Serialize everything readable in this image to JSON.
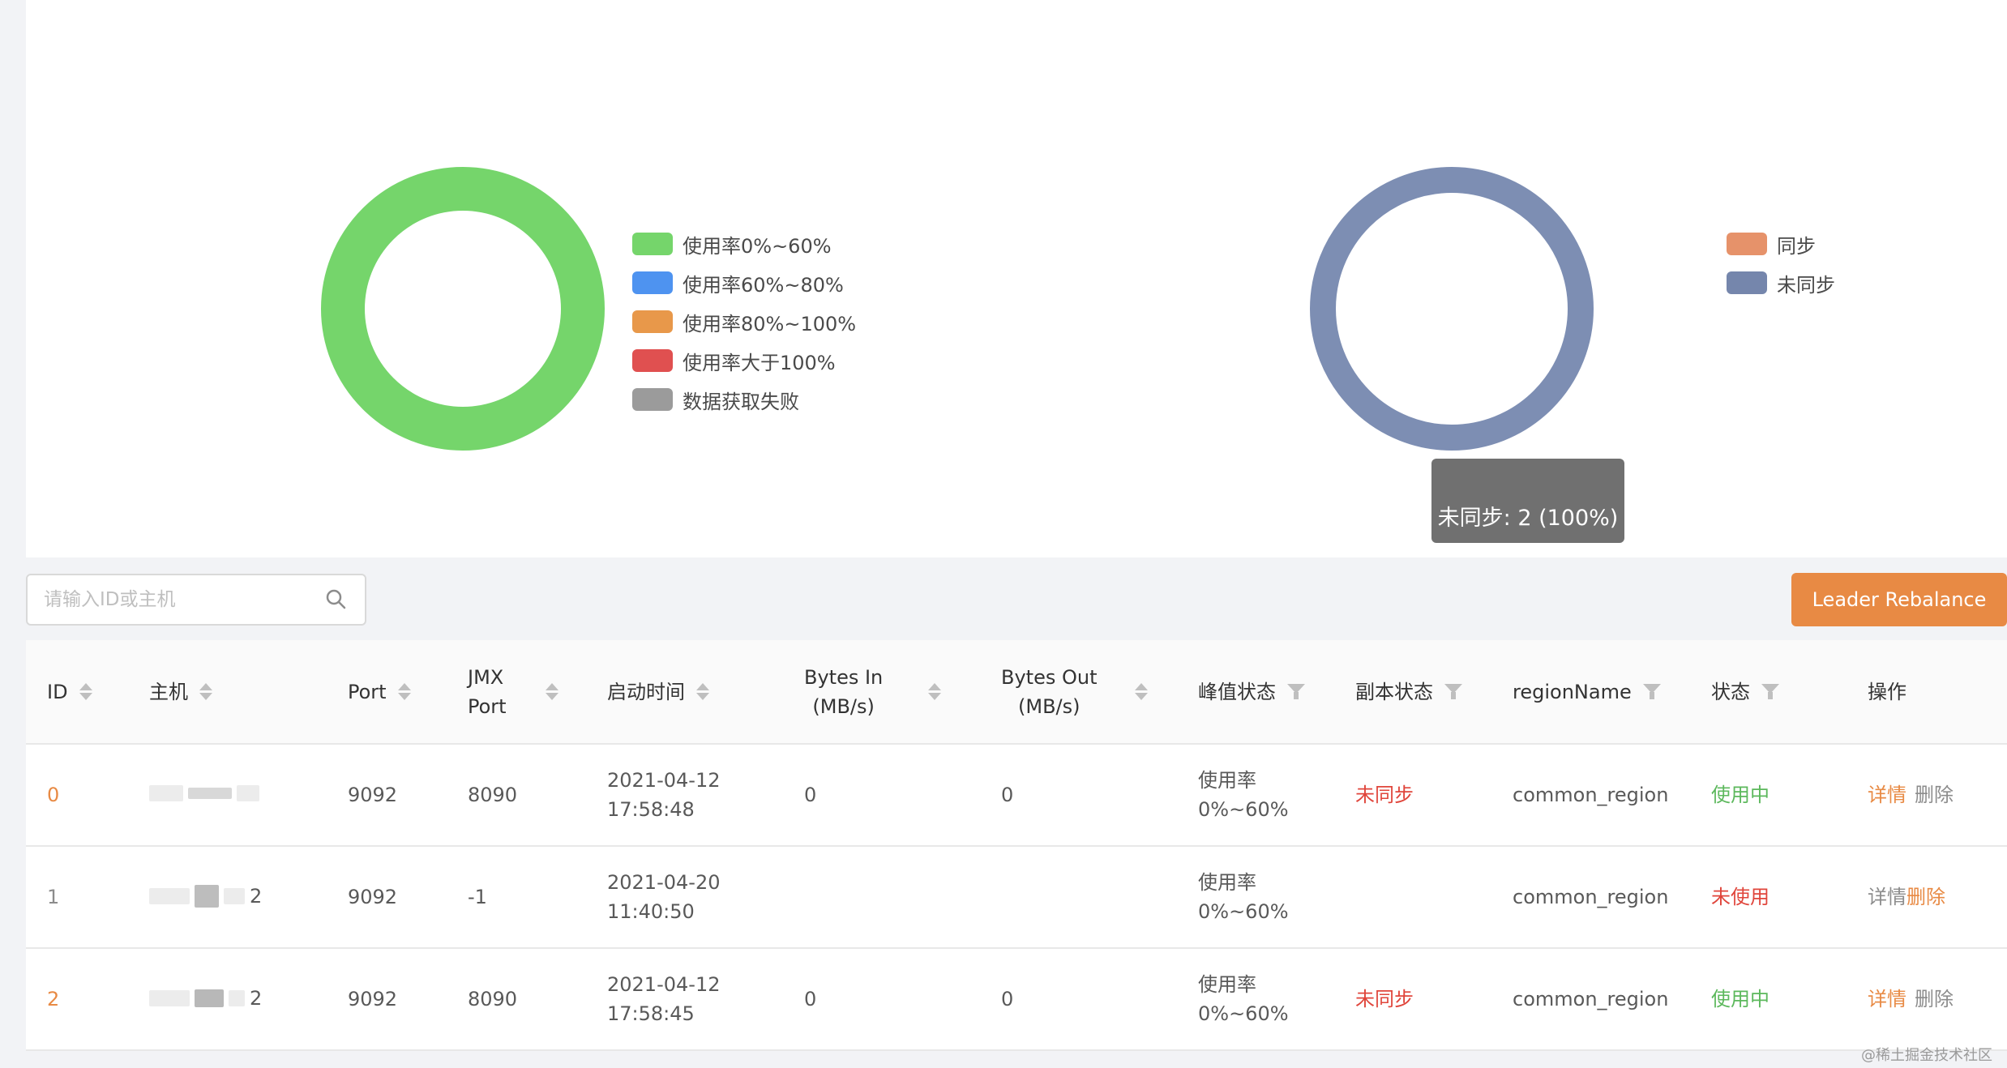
{
  "charts": {
    "peak_status": {
      "legend": [
        {
          "label": "使用率0%~60%",
          "color": "#75d56b"
        },
        {
          "label": "使用率60%~80%",
          "color": "#4e93f0"
        },
        {
          "label": "使用率80%~100%",
          "color": "#e8984a"
        },
        {
          "label": "使用率大于100%",
          "color": "#e05050"
        },
        {
          "label": "数据获取失败",
          "color": "#9b9b9b"
        }
      ],
      "ring_color": "#75d56b"
    },
    "replica_status": {
      "legend": [
        {
          "label": "同步",
          "color": "#e6926a"
        },
        {
          "label": "未同步",
          "color": "#7586ac"
        }
      ],
      "ring_color": "#7d8eb3",
      "tooltip": "未同步: 2 (100%)"
    }
  },
  "toolbar": {
    "search_placeholder": "请输入ID或主机",
    "rebalance_label": "Leader Rebalance"
  },
  "table": {
    "headers": {
      "id": "ID",
      "host": "主机",
      "port": "Port",
      "jmx_port_1": "JMX",
      "jmx_port_2": "Port",
      "start_time": "启动时间",
      "bytes_in_1": "Bytes In",
      "bytes_in_2": "(MB/s)",
      "bytes_out_1": "Bytes Out",
      "bytes_out_2": "(MB/s)",
      "peak": "峰值状态",
      "replica": "副本状态",
      "region": "regionName",
      "status": "状态",
      "action": "操作"
    },
    "rows": [
      {
        "id": "0",
        "host_suffix": "",
        "port": "9092",
        "jmx_port": "8090",
        "start_date": "2021-04-12",
        "start_clock": "17:58:48",
        "bytes_in": "0",
        "bytes_out": "0",
        "peak_1": "使用率",
        "peak_2": "0%~60%",
        "replica": "未同步",
        "region": "common_region",
        "status": "使用中",
        "detail": "详情",
        "delete": "删除"
      },
      {
        "id": "1",
        "host_suffix": "2",
        "port": "9092",
        "jmx_port": "-1",
        "start_date": "2021-04-20",
        "start_clock": "11:40:50",
        "bytes_in": "",
        "bytes_out": "",
        "peak_1": "使用率",
        "peak_2": "0%~60%",
        "replica": "",
        "region": "common_region",
        "status": "未使用",
        "detail": "详情",
        "delete": "删除"
      },
      {
        "id": "2",
        "host_suffix": "2",
        "port": "9092",
        "jmx_port": "8090",
        "start_date": "2021-04-12",
        "start_clock": "17:58:45",
        "bytes_in": "0",
        "bytes_out": "0",
        "peak_1": "使用率",
        "peak_2": "0%~60%",
        "replica": "未同步",
        "region": "common_region",
        "status": "使用中",
        "detail": "详情",
        "delete": "删除"
      }
    ]
  },
  "watermark": "@稀土掘金技术社区"
}
